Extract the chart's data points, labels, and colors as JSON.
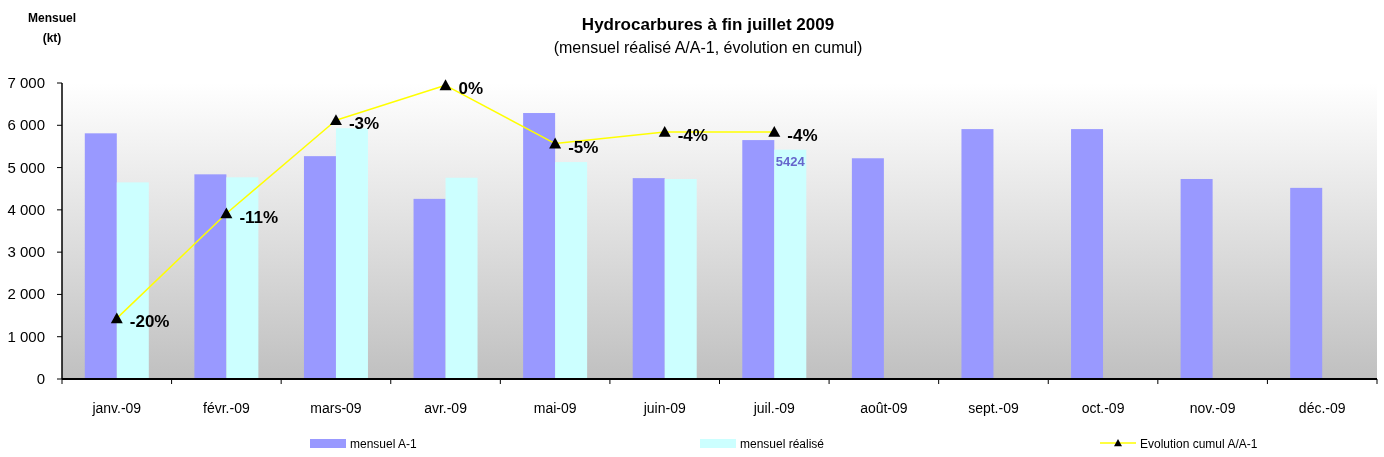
{
  "chart_data": {
    "type": "bar",
    "title": "Hydrocarbures à fin juillet 2009",
    "subtitle": "(mensuel réalisé A/A-1, évolution en cumul)",
    "ylabel": "Mensuel\n(kt)",
    "categories": [
      "janv.-09",
      "févr.-09",
      "mars-09",
      "avr.-09",
      "mai-09",
      "juin-09",
      "juil.-09",
      "août-09",
      "sept.-09",
      "oct.-09",
      "nov.-09",
      "déc.-09"
    ],
    "series": [
      {
        "name": "mensuel A-1",
        "color": "#9999ff",
        "values": [
          5810,
          4840,
          5270,
          4260,
          6290,
          4750,
          5650,
          5220,
          5910,
          5910,
          4730,
          4520
        ]
      },
      {
        "name": "mensuel réalisé",
        "color": "#ccffff",
        "values": [
          4650,
          4770,
          5930,
          4760,
          5130,
          4730,
          5424,
          null,
          null,
          null,
          null,
          null
        ],
        "value_labels": [
          null,
          null,
          null,
          null,
          null,
          null,
          "5424",
          null,
          null,
          null,
          null,
          null
        ]
      },
      {
        "name": "Evolution cumul A/A-1",
        "type": "line",
        "color": "#ffff00",
        "marker": "triangle",
        "axis": "y2",
        "values": [
          -20,
          -11,
          -3,
          0,
          -5,
          -4,
          -4,
          null,
          null,
          null,
          null,
          null
        ],
        "value_labels": [
          "-20%",
          "-11%",
          "-3%",
          "0%",
          "-5%",
          "-4%",
          "-4%",
          null,
          null,
          null,
          null,
          null
        ]
      }
    ],
    "ylim": [
      0,
      7000
    ],
    "yticks": [
      {
        "value": 0,
        "label": "0"
      },
      {
        "value": 1000,
        "label": "1 000"
      },
      {
        "value": 2000,
        "label": "2 000"
      },
      {
        "value": 3000,
        "label": "3 000"
      },
      {
        "value": 4000,
        "label": "4 000"
      },
      {
        "value": 5000,
        "label": "5 000"
      },
      {
        "value": 6000,
        "label": "6 000"
      },
      {
        "value": 7000,
        "label": "7 000"
      }
    ],
    "y2lim": [
      -25.2,
      0.2
    ],
    "grid": false,
    "legend": "bottom"
  }
}
